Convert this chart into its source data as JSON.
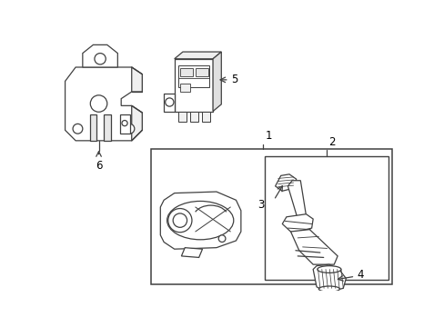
{
  "bg_color": "#ffffff",
  "line_color": "#404040",
  "font_size": 8.5,
  "figsize": [
    4.89,
    3.6
  ],
  "dpi": 100
}
